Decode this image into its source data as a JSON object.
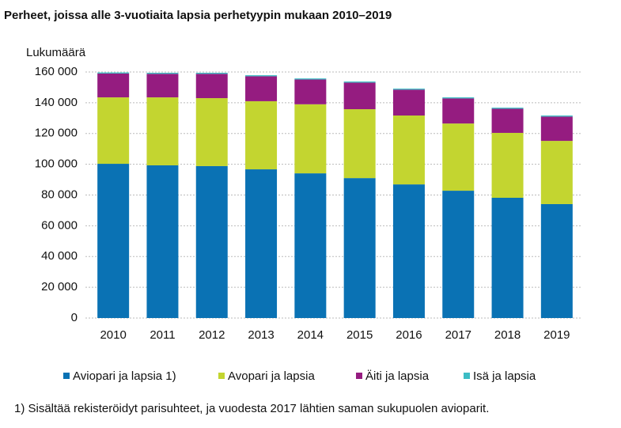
{
  "chart_data": {
    "type": "stacked_bar",
    "title": "Perheet, joissa alle 3-vuotiaita lapsia perhetyypin mukaan 2010–2019",
    "y_label": "Lukumäärä",
    "categories": [
      "2010",
      "2011",
      "2012",
      "2013",
      "2014",
      "2015",
      "2016",
      "2017",
      "2018",
      "2019"
    ],
    "series": [
      {
        "name": "Aviopari ja lapsia 1)",
        "color": "#0a72b4",
        "values": [
          100300,
          99300,
          98800,
          96700,
          94100,
          91000,
          86900,
          82800,
          78200,
          74100
        ]
      },
      {
        "name": "Avopari ja lapsia",
        "color": "#c3d530",
        "values": [
          43200,
          44200,
          44200,
          44300,
          44900,
          44800,
          44800,
          43700,
          42200,
          41100
        ]
      },
      {
        "name": "Äiti ja lapsia",
        "color": "#951c80",
        "values": [
          15500,
          15300,
          15800,
          16200,
          16100,
          17300,
          16800,
          16300,
          15700,
          15800
        ]
      },
      {
        "name": "Isä ja lapsia",
        "color": "#3cbcc4",
        "values": [
          700,
          700,
          700,
          700,
          700,
          700,
          700,
          700,
          700,
          700
        ]
      }
    ],
    "ylim": [
      0,
      160000
    ],
    "yticks": [
      0,
      {
        "value": 20000,
        "label": "20 000"
      },
      {
        "value": 40000,
        "label": "40 000"
      },
      {
        "value": 60000,
        "label": "60 000"
      },
      {
        "value": 80000,
        "label": "80 000"
      },
      {
        "value": 100000,
        "label": "100 000"
      },
      {
        "value": 120000,
        "label": "120 000"
      },
      {
        "value": 140000,
        "label": "140 000"
      },
      {
        "value": 160000,
        "label": "160 000"
      }
    ],
    "grid": true,
    "legend": "bottom",
    "footnote": "1) Sisältää rekisteröidyt parisuhteet, ja vuodesta 2017 lähtien saman sukupuolen avioparit."
  }
}
